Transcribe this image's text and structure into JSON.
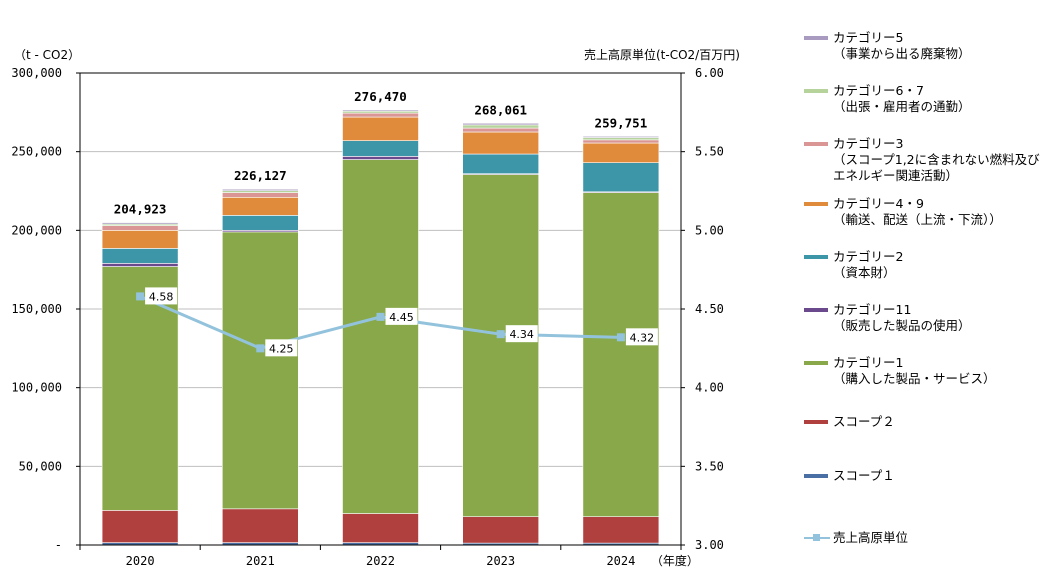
{
  "chart_data": {
    "type": "bar",
    "stacked": true,
    "categories": [
      "2020",
      "2021",
      "2022",
      "2023",
      "2024"
    ],
    "xlabel_suffix": "（年度）",
    "ylabel_left": "（t - CO2）",
    "ylabel_right": "売上高原単位(t-CO2/百万円)",
    "ylim_left": [
      0,
      300000
    ],
    "ylim_right": [
      3.0,
      6.0
    ],
    "yticks_left": [
      "-",
      "50,000",
      "100,000",
      "150,000",
      "200,000",
      "250,000",
      "300,000"
    ],
    "yticks_right": [
      "3.00",
      "3.50",
      "4.00",
      "4.50",
      "5.00",
      "5.50",
      "6.00"
    ],
    "totals": [
      "204,923",
      "226,127",
      "276,470",
      "268,061",
      "259,751"
    ],
    "series": [
      {
        "name": "スコープ１",
        "color": "#4A6FA5",
        "values": [
          1500,
          1500,
          1500,
          1200,
          1200
        ]
      },
      {
        "name": "スコープ２",
        "color": "#B0403E",
        "values": [
          20500,
          21500,
          18500,
          16800,
          16800
        ]
      },
      {
        "name": "カテゴリー1\n（購入した製品・サービス）",
        "color": "#88A84A",
        "values": [
          155000,
          176000,
          225000,
          217500,
          206000
        ]
      },
      {
        "name": "カテゴリー11\n（販売した製品の使用）",
        "color": "#6A4A8C",
        "values": [
          2000,
          1000,
          2000,
          500,
          500
        ]
      },
      {
        "name": "カテゴリー2\n（資本財）",
        "color": "#3D95A8",
        "values": [
          9500,
          9500,
          10000,
          12500,
          18500
        ]
      },
      {
        "name": "カテゴリー4・9\n（輸送、配送（上流・下流））",
        "color": "#E08A3C",
        "values": [
          11500,
          11500,
          15000,
          14000,
          12500
        ]
      },
      {
        "name": "カテゴリー3\n（スコープ1,2に含まれない燃料及び\nエネルギー関連活動）",
        "color": "#D99694",
        "values": [
          3000,
          3000,
          2500,
          2500,
          2000
        ]
      },
      {
        "name": "カテゴリー6・7\n（出張・雇用者の通勤）",
        "color": "#B5D39A",
        "values": [
          1000,
          1200,
          1200,
          2000,
          1500
        ]
      },
      {
        "name": "カテゴリー5\n（事業から出る廃棄物）",
        "color": "#A99BC0",
        "values": [
          923,
          927,
          770,
          1061,
          751
        ]
      }
    ],
    "line_series": {
      "name": "売上高原単位",
      "color": "#93C3DC",
      "values": [
        4.58,
        4.25,
        4.45,
        4.34,
        4.32
      ],
      "labels": [
        "4.58",
        "4.25",
        "4.45",
        "4.34",
        "4.32"
      ]
    }
  }
}
